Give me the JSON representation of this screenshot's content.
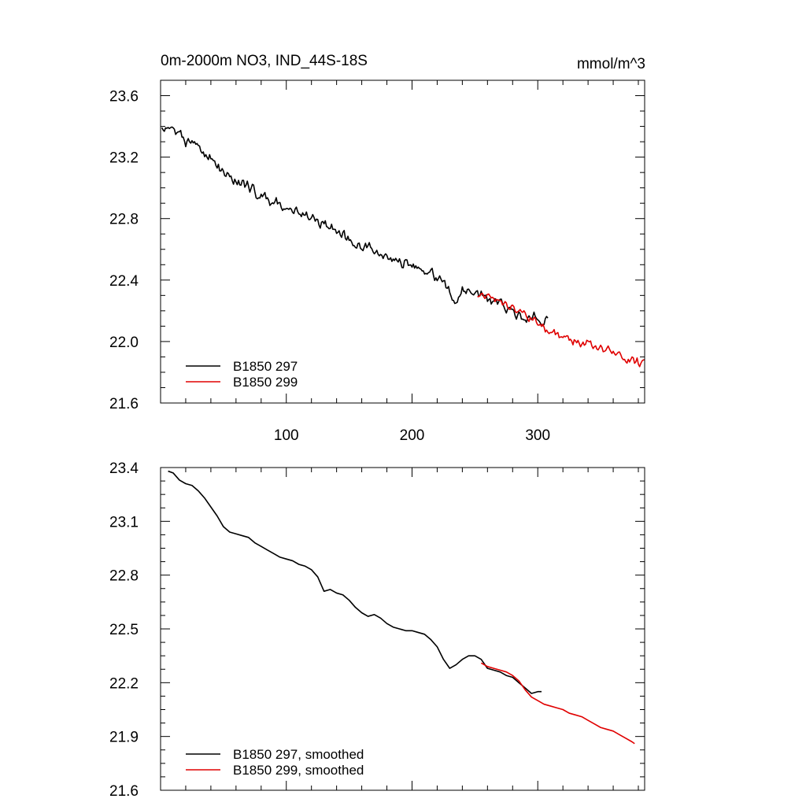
{
  "chart_data": [
    {
      "type": "line",
      "title": "0m-2000m NO3, IND_44S-18S",
      "units": "mmol/m^3",
      "xlim": [
        0,
        385
      ],
      "ylim": [
        21.6,
        23.7
      ],
      "xticks": [
        100,
        200,
        300
      ],
      "xtick_labels": [
        "100",
        "200",
        "300"
      ],
      "yticks": [
        21.6,
        22.0,
        22.4,
        22.8,
        23.2,
        23.6
      ],
      "ytick_labels": [
        "21.6",
        "22.0",
        "22.4",
        "22.8",
        "23.2",
        "23.6"
      ],
      "legend_position": "bottom-left",
      "series": [
        {
          "name": "B1850 297",
          "color": "#000000",
          "x_start": 1,
          "x_end": 308,
          "anchors": [
            [
              1,
              23.4
            ],
            [
              10,
              23.38
            ],
            [
              20,
              23.31
            ],
            [
              30,
              23.26
            ],
            [
              40,
              23.2
            ],
            [
              50,
              23.09
            ],
            [
              60,
              23.05
            ],
            [
              70,
              23.0
            ],
            [
              80,
              22.95
            ],
            [
              90,
              22.91
            ],
            [
              100,
              22.88
            ],
            [
              110,
              22.84
            ],
            [
              120,
              22.81
            ],
            [
              130,
              22.76
            ],
            [
              140,
              22.72
            ],
            [
              150,
              22.66
            ],
            [
              160,
              22.63
            ],
            [
              170,
              22.6
            ],
            [
              180,
              22.56
            ],
            [
              190,
              22.52
            ],
            [
              200,
              22.5
            ],
            [
              210,
              22.46
            ],
            [
              220,
              22.42
            ],
            [
              228,
              22.35
            ],
            [
              235,
              22.25
            ],
            [
              240,
              22.33
            ],
            [
              250,
              22.33
            ],
            [
              260,
              22.27
            ],
            [
              270,
              22.25
            ],
            [
              280,
              22.2
            ],
            [
              290,
              22.15
            ],
            [
              300,
              22.16
            ],
            [
              308,
              22.13
            ]
          ],
          "noise_amp": 0.045,
          "seed": 297
        },
        {
          "name": "B1850 299",
          "color": "#e00000",
          "x_start": 252,
          "x_end": 385,
          "anchors": [
            [
              252,
              22.3
            ],
            [
              260,
              22.3
            ],
            [
              270,
              22.25
            ],
            [
              280,
              22.22
            ],
            [
              290,
              22.17
            ],
            [
              300,
              22.12
            ],
            [
              310,
              22.07
            ],
            [
              320,
              22.03
            ],
            [
              330,
              22.0
            ],
            [
              340,
              21.99
            ],
            [
              350,
              21.96
            ],
            [
              360,
              21.93
            ],
            [
              370,
              21.89
            ],
            [
              380,
              21.86
            ],
            [
              385,
              21.88
            ]
          ],
          "noise_amp": 0.035,
          "seed": 299
        }
      ]
    },
    {
      "type": "line",
      "xlim": [
        0,
        385
      ],
      "ylim": [
        21.6,
        23.4
      ],
      "xticks": [
        100,
        200,
        300
      ],
      "xtick_labels": [
        "",
        "",
        ""
      ],
      "yticks": [
        21.6,
        21.9,
        22.2,
        22.5,
        22.8,
        23.1,
        23.4
      ],
      "ytick_labels": [
        "21.6",
        "21.9",
        "22.2",
        "22.5",
        "22.8",
        "23.1",
        "23.4"
      ],
      "legend_position": "bottom-left",
      "series": [
        {
          "name": "B1850 297, smoothed",
          "color": "#000000",
          "x_start": 6,
          "x_end": 303,
          "anchors": [
            [
              6,
              23.38
            ],
            [
              10,
              23.37
            ],
            [
              15,
              23.33
            ],
            [
              20,
              23.31
            ],
            [
              25,
              23.3
            ],
            [
              30,
              23.27
            ],
            [
              35,
              23.23
            ],
            [
              40,
              23.18
            ],
            [
              45,
              23.13
            ],
            [
              50,
              23.07
            ],
            [
              55,
              23.04
            ],
            [
              60,
              23.03
            ],
            [
              65,
              23.02
            ],
            [
              70,
              23.01
            ],
            [
              75,
              22.98
            ],
            [
              80,
              22.96
            ],
            [
              85,
              22.94
            ],
            [
              90,
              22.92
            ],
            [
              95,
              22.9
            ],
            [
              100,
              22.89
            ],
            [
              105,
              22.88
            ],
            [
              110,
              22.86
            ],
            [
              115,
              22.85
            ],
            [
              120,
              22.83
            ],
            [
              125,
              22.79
            ],
            [
              130,
              22.71
            ],
            [
              135,
              22.72
            ],
            [
              140,
              22.7
            ],
            [
              145,
              22.69
            ],
            [
              150,
              22.66
            ],
            [
              155,
              22.62
            ],
            [
              160,
              22.59
            ],
            [
              165,
              22.57
            ],
            [
              170,
              22.58
            ],
            [
              175,
              22.56
            ],
            [
              180,
              22.53
            ],
            [
              185,
              22.51
            ],
            [
              190,
              22.5
            ],
            [
              195,
              22.49
            ],
            [
              200,
              22.49
            ],
            [
              205,
              22.48
            ],
            [
              210,
              22.47
            ],
            [
              215,
              22.44
            ],
            [
              220,
              22.4
            ],
            [
              225,
              22.33
            ],
            [
              230,
              22.28
            ],
            [
              235,
              22.3
            ],
            [
              240,
              22.33
            ],
            [
              245,
              22.35
            ],
            [
              250,
              22.35
            ],
            [
              255,
              22.33
            ],
            [
              260,
              22.28
            ],
            [
              265,
              22.27
            ],
            [
              270,
              22.26
            ],
            [
              275,
              22.24
            ],
            [
              280,
              22.23
            ],
            [
              285,
              22.2
            ],
            [
              290,
              22.17
            ],
            [
              295,
              22.14
            ],
            [
              300,
              22.15
            ],
            [
              303,
              22.15
            ]
          ]
        },
        {
          "name": "B1850 299, smoothed",
          "color": "#e00000",
          "x_start": 255,
          "x_end": 377,
          "anchors": [
            [
              255,
              22.31
            ],
            [
              260,
              22.29
            ],
            [
              265,
              22.28
            ],
            [
              270,
              22.27
            ],
            [
              275,
              22.26
            ],
            [
              280,
              22.24
            ],
            [
              285,
              22.21
            ],
            [
              290,
              22.16
            ],
            [
              295,
              22.12
            ],
            [
              300,
              22.1
            ],
            [
              305,
              22.08
            ],
            [
              310,
              22.07
            ],
            [
              315,
              22.06
            ],
            [
              320,
              22.05
            ],
            [
              325,
              22.03
            ],
            [
              330,
              22.02
            ],
            [
              335,
              22.01
            ],
            [
              340,
              21.99
            ],
            [
              345,
              21.97
            ],
            [
              350,
              21.95
            ],
            [
              355,
              21.94
            ],
            [
              360,
              21.93
            ],
            [
              365,
              21.91
            ],
            [
              370,
              21.89
            ],
            [
              375,
              21.87
            ],
            [
              377,
              21.86
            ]
          ]
        }
      ]
    }
  ]
}
